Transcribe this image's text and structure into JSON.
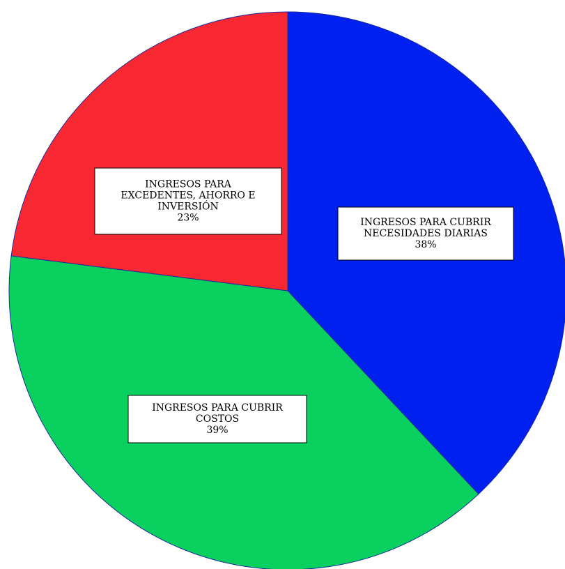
{
  "chart_data": {
    "type": "pie",
    "slices": [
      {
        "label_lines": [
          "INGRESOS PARA CUBRIR",
          "NECESIDADES DIARIAS"
        ],
        "percent_label": "38%",
        "value": 38,
        "color": "#0020f0"
      },
      {
        "label_lines": [
          "INGRESOS PARA CUBRIR",
          "COSTOS"
        ],
        "percent_label": "39%",
        "value": 39,
        "color": "#0ad060"
      },
      {
        "label_lines": [
          "INGRESOS PARA",
          "EXCEDENTES, AHORRO E",
          "INVERSIÓN"
        ],
        "percent_label": "23%",
        "value": 23,
        "color": "#f82832"
      }
    ]
  }
}
